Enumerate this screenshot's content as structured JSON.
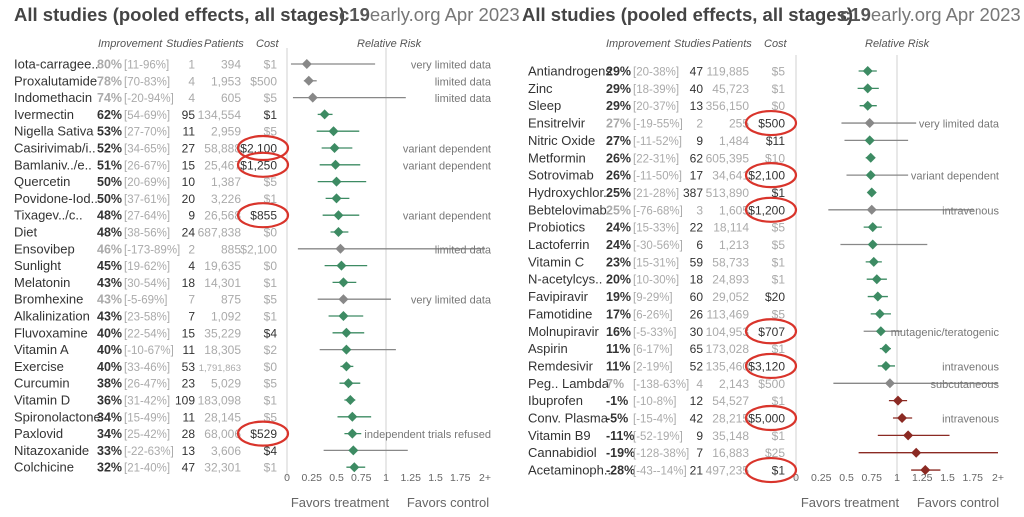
{
  "header": {
    "title": "All studies (pooled effects, all stages)",
    "site_bold": "c19",
    "site_rest": "early.org Apr 2023"
  },
  "columns": {
    "improvement": "Improvement",
    "studies": "Studies",
    "patients": "Patients",
    "cost": "Cost",
    "rr": "Relative Risk"
  },
  "colors": {
    "green": "#3d8b63",
    "gray": "#888888",
    "red": "#8b2a23",
    "circle": "#d9342b",
    "axis": "#d0d0d0"
  },
  "chart_data": [
    {
      "type": "forest",
      "title": "All studies (pooled effects, all stages)",
      "xlabel_left": "Favors treatment",
      "xlabel_right": "Favors control",
      "xticks": [
        "0",
        "0.25",
        "0.5",
        "0.75",
        "1",
        "1.25",
        "1.5",
        "1.75",
        "2+"
      ],
      "xlim": [
        0,
        2
      ],
      "rows": [
        {
          "name": "Iota-carragee..",
          "imp": "80%",
          "ci": "[11-96%]",
          "studies": "1",
          "patients": "394",
          "cost": "$1",
          "rr": 0.2,
          "lo": 0.04,
          "hi": 0.89,
          "color": "gray",
          "faded": true,
          "note": "very limited data",
          "circled": false
        },
        {
          "name": "Proxalutamide",
          "imp": "78%",
          "ci": "[70-83%]",
          "studies": "4",
          "patients": "1,953",
          "cost": "$500",
          "rr": 0.22,
          "lo": 0.17,
          "hi": 0.3,
          "color": "gray",
          "faded": true,
          "note": "limited data",
          "circled": false
        },
        {
          "name": "Indomethacin",
          "imp": "74%",
          "ci": "[-20-94%]",
          "studies": "4",
          "patients": "605",
          "cost": "$5",
          "rr": 0.26,
          "lo": 0.06,
          "hi": 1.2,
          "color": "gray",
          "faded": true,
          "note": "limited data",
          "circled": false
        },
        {
          "name": "Ivermectin",
          "imp": "62%",
          "ci": "[54-69%]",
          "studies": "95",
          "patients": "134,554",
          "cost": "$1",
          "rr": 0.38,
          "lo": 0.31,
          "hi": 0.46,
          "color": "green",
          "faded": false,
          "note": "",
          "circled": false,
          "cost_dark": true
        },
        {
          "name": "Nigella Sativa",
          "imp": "53%",
          "ci": "[27-70%]",
          "studies": "11",
          "patients": "2,959",
          "cost": "$5",
          "rr": 0.47,
          "lo": 0.3,
          "hi": 0.73,
          "color": "green",
          "faded": false,
          "note": "",
          "circled": false
        },
        {
          "name": "Casirivimab/i..",
          "imp": "52%",
          "ci": "[34-65%]",
          "studies": "27",
          "patients": "58,888",
          "cost": "$2,100",
          "rr": 0.48,
          "lo": 0.35,
          "hi": 0.66,
          "color": "green",
          "faded": false,
          "note": "variant dependent",
          "circled": true
        },
        {
          "name": "Bamlaniv../e..",
          "imp": "51%",
          "ci": "[26-67%]",
          "studies": "15",
          "patients": "25,467",
          "cost": "$1,250",
          "rr": 0.49,
          "lo": 0.33,
          "hi": 0.74,
          "color": "green",
          "faded": false,
          "note": "variant dependent",
          "circled": true
        },
        {
          "name": "Quercetin",
          "imp": "50%",
          "ci": "[20-69%]",
          "studies": "10",
          "patients": "1,387",
          "cost": "$5",
          "rr": 0.5,
          "lo": 0.31,
          "hi": 0.8,
          "color": "green",
          "faded": false,
          "note": "",
          "circled": false
        },
        {
          "name": "Povidone-Iod..",
          "imp": "50%",
          "ci": "[37-61%]",
          "studies": "20",
          "patients": "3,226",
          "cost": "$1",
          "rr": 0.5,
          "lo": 0.39,
          "hi": 0.63,
          "color": "green",
          "faded": false,
          "note": "",
          "circled": false
        },
        {
          "name": "Tixagev../c..",
          "imp": "48%",
          "ci": "[27-64%]",
          "studies": "9",
          "patients": "26,568",
          "cost": "$855",
          "rr": 0.52,
          "lo": 0.36,
          "hi": 0.73,
          "color": "green",
          "faded": false,
          "note": "variant dependent",
          "circled": true
        },
        {
          "name": "Diet",
          "imp": "48%",
          "ci": "[38-56%]",
          "studies": "24",
          "patients": "687,838",
          "cost": "$0",
          "rr": 0.52,
          "lo": 0.44,
          "hi": 0.62,
          "color": "green",
          "faded": false,
          "note": "",
          "circled": false
        },
        {
          "name": "Ensovibep",
          "imp": "46%",
          "ci": "[-173-89%]",
          "studies": "2",
          "patients": "885",
          "cost": "$2,100",
          "rr": 0.54,
          "lo": 0.11,
          "hi": 2.0,
          "color": "gray",
          "faded": true,
          "note": "limited data",
          "strike": true,
          "circled": false
        },
        {
          "name": "Sunlight",
          "imp": "45%",
          "ci": "[19-62%]",
          "studies": "4",
          "patients": "19,635",
          "cost": "$0",
          "rr": 0.55,
          "lo": 0.38,
          "hi": 0.81,
          "color": "green",
          "faded": false,
          "note": "",
          "circled": false
        },
        {
          "name": "Melatonin",
          "imp": "43%",
          "ci": "[30-54%]",
          "studies": "18",
          "patients": "14,301",
          "cost": "$1",
          "rr": 0.57,
          "lo": 0.46,
          "hi": 0.7,
          "color": "green",
          "faded": false,
          "note": "",
          "circled": false
        },
        {
          "name": "Bromhexine",
          "imp": "43%",
          "ci": "[-5-69%]",
          "studies": "7",
          "patients": "875",
          "cost": "$5",
          "rr": 0.57,
          "lo": 0.31,
          "hi": 1.05,
          "color": "gray",
          "faded": true,
          "note": "very limited data",
          "circled": false
        },
        {
          "name": "Alkalinization",
          "imp": "43%",
          "ci": "[23-58%]",
          "studies": "7",
          "patients": "1,092",
          "cost": "$1",
          "rr": 0.57,
          "lo": 0.42,
          "hi": 0.77,
          "color": "green",
          "faded": false,
          "note": "",
          "circled": false
        },
        {
          "name": "Fluvoxamine",
          "imp": "40%",
          "ci": "[22-54%]",
          "studies": "15",
          "patients": "35,229",
          "cost": "$4",
          "rr": 0.6,
          "lo": 0.46,
          "hi": 0.78,
          "color": "green",
          "faded": false,
          "note": "",
          "circled": false,
          "cost_dark": true
        },
        {
          "name": "Vitamin A",
          "imp": "40%",
          "ci": "[-10-67%]",
          "studies": "11",
          "patients": "18,305",
          "cost": "$2",
          "rr": 0.6,
          "lo": 0.33,
          "hi": 1.1,
          "color": "green",
          "faded": false,
          "gray_line": true,
          "note": "",
          "circled": false
        },
        {
          "name": "Exercise",
          "imp": "40%",
          "ci": "[33-46%]",
          "studies": "53",
          "patients": "1,791,863",
          "cost": "$0",
          "rr": 0.6,
          "lo": 0.54,
          "hi": 0.67,
          "color": "green",
          "faded": false,
          "note": "",
          "circled": false
        },
        {
          "name": "Curcumin",
          "imp": "38%",
          "ci": "[26-47%]",
          "studies": "23",
          "patients": "5,029",
          "cost": "$5",
          "rr": 0.62,
          "lo": 0.53,
          "hi": 0.74,
          "color": "green",
          "faded": false,
          "note": "",
          "circled": false
        },
        {
          "name": "Vitamin D",
          "imp": "36%",
          "ci": "[31-42%]",
          "studies": "109",
          "patients": "183,098",
          "cost": "$1",
          "rr": 0.64,
          "lo": 0.58,
          "hi": 0.69,
          "color": "green",
          "faded": false,
          "note": "",
          "circled": false
        },
        {
          "name": "Spironolactone",
          "imp": "34%",
          "ci": "[15-49%]",
          "studies": "11",
          "patients": "28,145",
          "cost": "$5",
          "rr": 0.66,
          "lo": 0.51,
          "hi": 0.85,
          "color": "green",
          "faded": false,
          "note": "",
          "circled": false
        },
        {
          "name": "Paxlovid",
          "imp": "34%",
          "ci": "[25-42%]",
          "studies": "28",
          "patients": "68,006",
          "cost": "$529",
          "rr": 0.66,
          "lo": 0.58,
          "hi": 0.75,
          "color": "green",
          "faded": false,
          "note": "independent trials refused",
          "circled": true
        },
        {
          "name": "Nitazoxanide",
          "imp": "33%",
          "ci": "[-22-63%]",
          "studies": "13",
          "patients": "3,606",
          "cost": "$4",
          "rr": 0.67,
          "lo": 0.37,
          "hi": 1.22,
          "color": "green",
          "faded": false,
          "gray_line": true,
          "note": "",
          "circled": false,
          "cost_dark": true
        },
        {
          "name": "Colchicine",
          "imp": "32%",
          "ci": "[21-40%]",
          "studies": "47",
          "patients": "32,301",
          "cost": "$1",
          "rr": 0.68,
          "lo": 0.6,
          "hi": 0.79,
          "color": "green",
          "faded": false,
          "note": "",
          "circled": false
        }
      ]
    },
    {
      "type": "forest",
      "title": "All studies (pooled effects, all stages)",
      "xlabel_left": "Favors treatment",
      "xlabel_right": "Favors control",
      "xticks": [
        "0",
        "0.25",
        "0.5",
        "0.75",
        "1",
        "1.25",
        "1.5",
        "1.75",
        "2+"
      ],
      "xlim": [
        0,
        2
      ],
      "rows": [
        {
          "name": "Antiandrogens",
          "imp": "29%",
          "ci": "[20-38%]",
          "studies": "47",
          "patients": "119,885",
          "cost": "$5",
          "rr": 0.71,
          "lo": 0.62,
          "hi": 0.8,
          "color": "green",
          "faded": false,
          "note": "",
          "circled": false
        },
        {
          "name": "Zinc",
          "imp": "29%",
          "ci": "[18-39%]",
          "studies": "40",
          "patients": "45,723",
          "cost": "$1",
          "rr": 0.71,
          "lo": 0.61,
          "hi": 0.82,
          "color": "green",
          "faded": false,
          "note": "",
          "circled": false
        },
        {
          "name": "Sleep",
          "imp": "29%",
          "ci": "[20-37%]",
          "studies": "13",
          "patients": "356,150",
          "cost": "$0",
          "rr": 0.71,
          "lo": 0.63,
          "hi": 0.8,
          "color": "green",
          "faded": false,
          "note": "",
          "circled": false
        },
        {
          "name": "Ensitrelvir",
          "imp": "27%",
          "ci": "[-19-55%]",
          "studies": "2",
          "patients": "255",
          "cost": "$500",
          "rr": 0.73,
          "lo": 0.45,
          "hi": 1.19,
          "color": "gray",
          "faded": true,
          "note": "very limited data",
          "circled": true
        },
        {
          "name": "Nitric Oxide",
          "imp": "27%",
          "ci": "[-11-52%]",
          "studies": "9",
          "patients": "1,484",
          "cost": "$11",
          "rr": 0.73,
          "lo": 0.48,
          "hi": 1.11,
          "color": "green",
          "faded": false,
          "gray_line": true,
          "note": "",
          "circled": false,
          "cost_dark": true
        },
        {
          "name": "Metformin",
          "imp": "26%",
          "ci": "[22-31%]",
          "studies": "62",
          "patients": "605,395",
          "cost": "$10",
          "rr": 0.74,
          "lo": 0.69,
          "hi": 0.78,
          "color": "green",
          "faded": false,
          "note": "",
          "circled": false
        },
        {
          "name": "Sotrovimab",
          "imp": "26%",
          "ci": "[-11-50%]",
          "studies": "17",
          "patients": "34,641",
          "cost": "$2,100",
          "rr": 0.74,
          "lo": 0.5,
          "hi": 1.11,
          "color": "green",
          "faded": false,
          "gray_line": true,
          "note": "variant dependent",
          "circled": true
        },
        {
          "name": "Hydroxychlor..",
          "imp": "25%",
          "ci": "[21-28%]",
          "studies": "387",
          "patients": "513,890",
          "cost": "$1",
          "rr": 0.75,
          "lo": 0.72,
          "hi": 0.79,
          "color": "green",
          "faded": false,
          "note": "",
          "circled": false,
          "cost_dark": true
        },
        {
          "name": "Bebtelovimab",
          "imp": "25%",
          "ci": "[-76-68%]",
          "studies": "3",
          "patients": "1,605",
          "cost": "$1,200",
          "rr": 0.75,
          "lo": 0.32,
          "hi": 1.76,
          "color": "gray",
          "faded": true,
          "note": "intravenous",
          "strike": true,
          "circled": true
        },
        {
          "name": "Probiotics",
          "imp": "24%",
          "ci": "[15-33%]",
          "studies": "22",
          "patients": "18,114",
          "cost": "$5",
          "rr": 0.76,
          "lo": 0.67,
          "hi": 0.85,
          "color": "green",
          "faded": false,
          "note": "",
          "circled": false
        },
        {
          "name": "Lactoferrin",
          "imp": "24%",
          "ci": "[-30-56%]",
          "studies": "6",
          "patients": "1,213",
          "cost": "$5",
          "rr": 0.76,
          "lo": 0.44,
          "hi": 1.3,
          "color": "green",
          "faded": false,
          "gray_line": true,
          "note": "",
          "circled": false
        },
        {
          "name": "Vitamin C",
          "imp": "23%",
          "ci": "[15-31%]",
          "studies": "59",
          "patients": "58,733",
          "cost": "$1",
          "rr": 0.77,
          "lo": 0.69,
          "hi": 0.85,
          "color": "green",
          "faded": false,
          "note": "",
          "circled": false
        },
        {
          "name": "N-acetylcys..",
          "imp": "20%",
          "ci": "[10-30%]",
          "studies": "18",
          "patients": "24,893",
          "cost": "$1",
          "rr": 0.8,
          "lo": 0.7,
          "hi": 0.9,
          "color": "green",
          "faded": false,
          "note": "",
          "circled": false
        },
        {
          "name": "Favipiravir",
          "imp": "19%",
          "ci": "[9-29%]",
          "studies": "60",
          "patients": "29,052",
          "cost": "$20",
          "rr": 0.81,
          "lo": 0.71,
          "hi": 0.91,
          "color": "green",
          "faded": false,
          "note": "",
          "circled": false,
          "cost_dark": true
        },
        {
          "name": "Famotidine",
          "imp": "17%",
          "ci": "[6-26%]",
          "studies": "26",
          "patients": "113,469",
          "cost": "$5",
          "rr": 0.83,
          "lo": 0.74,
          "hi": 0.94,
          "color": "green",
          "faded": false,
          "note": "",
          "circled": false
        },
        {
          "name": "Molnupiravir",
          "imp": "16%",
          "ci": "[-5-33%]",
          "studies": "30",
          "patients": "104,953",
          "cost": "$707",
          "rr": 0.84,
          "lo": 0.67,
          "hi": 1.05,
          "color": "green",
          "faded": false,
          "gray_line": true,
          "note": "mutagenic/teratogenic",
          "circled": true
        },
        {
          "name": "Aspirin",
          "imp": "11%",
          "ci": "[6-17%]",
          "studies": "65",
          "patients": "173,028",
          "cost": "$1",
          "rr": 0.89,
          "lo": 0.83,
          "hi": 0.94,
          "color": "green",
          "faded": false,
          "note": "",
          "circled": false
        },
        {
          "name": "Remdesivir",
          "imp": "11%",
          "ci": "[2-19%]",
          "studies": "52",
          "patients": "135,460",
          "cost": "$3,120",
          "rr": 0.89,
          "lo": 0.81,
          "hi": 0.98,
          "color": "green",
          "faded": false,
          "note": "intravenous",
          "circled": true
        },
        {
          "name": "Peg.. Lambda",
          "imp": "7%",
          "ci": "[-138-63%]",
          "studies": "4",
          "patients": "2,143",
          "cost": "$500",
          "rr": 0.93,
          "lo": 0.37,
          "hi": 2.0,
          "color": "gray",
          "faded": true,
          "note": "subcutaneous",
          "strike": true,
          "circled": false
        },
        {
          "name": "Ibuprofen",
          "imp": "-1%",
          "ci": "[-10-8%]",
          "studies": "12",
          "patients": "54,527",
          "cost": "$1",
          "rr": 1.01,
          "lo": 0.92,
          "hi": 1.1,
          "color": "red",
          "faded": false,
          "note": "",
          "circled": false
        },
        {
          "name": "Conv. Plasma",
          "imp": "-5%",
          "ci": "[-15-4%]",
          "studies": "42",
          "patients": "28,215",
          "cost": "$5,000",
          "rr": 1.05,
          "lo": 0.96,
          "hi": 1.15,
          "color": "red",
          "faded": false,
          "note": "intravenous",
          "circled": true
        },
        {
          "name": "Vitamin B9",
          "imp": "-11%",
          "ci": "[-52-19%]",
          "studies": "9",
          "patients": "35,148",
          "cost": "$1",
          "rr": 1.11,
          "lo": 0.81,
          "hi": 1.52,
          "color": "red",
          "faded": false,
          "note": "",
          "circled": false
        },
        {
          "name": "Cannabidiol",
          "imp": "-19%",
          "ci": "[-128-38%]",
          "studies": "7",
          "patients": "16,883",
          "cost": "$25",
          "rr": 1.19,
          "lo": 0.62,
          "hi": 2.0,
          "color": "red",
          "faded": false,
          "note": "",
          "circled": false
        },
        {
          "name": "Acetaminoph..",
          "imp": "-28%",
          "ci": "[-43--14%]",
          "studies": "21",
          "patients": "497,235",
          "cost": "$1",
          "rr": 1.28,
          "lo": 1.14,
          "hi": 1.43,
          "color": "red",
          "faded": false,
          "note": "",
          "circled": true
        }
      ]
    }
  ]
}
